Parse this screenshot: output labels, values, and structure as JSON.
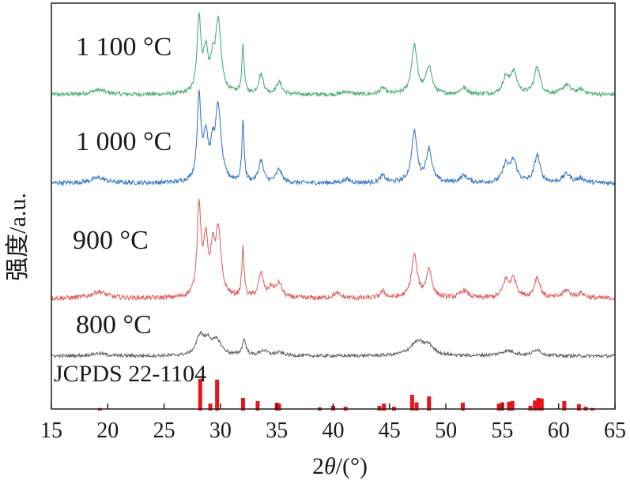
{
  "chart_data": {
    "type": "line",
    "xlabel_prefix": "2",
    "xlabel_theta": "θ",
    "xlabel_unit": "/(°)",
    "ylabel": "强度/a.u.",
    "xlim": [
      15,
      65
    ],
    "xticks": [
      15,
      20,
      25,
      30,
      35,
      40,
      45,
      50,
      55,
      60,
      65
    ],
    "grid": false,
    "reference": {
      "name": "JCPDS 22-1104",
      "color": "#e8141b",
      "peaks": [
        {
          "x": 19.3,
          "h": 0.08
        },
        {
          "x": 28.2,
          "h": 1.0
        },
        {
          "x": 29.1,
          "h": 0.22
        },
        {
          "x": 29.7,
          "h": 0.98
        },
        {
          "x": 32.0,
          "h": 0.4
        },
        {
          "x": 33.3,
          "h": 0.3
        },
        {
          "x": 35.0,
          "h": 0.25
        },
        {
          "x": 35.2,
          "h": 0.22
        },
        {
          "x": 38.8,
          "h": 0.1
        },
        {
          "x": 40.0,
          "h": 0.15
        },
        {
          "x": 41.1,
          "h": 0.12
        },
        {
          "x": 44.1,
          "h": 0.15
        },
        {
          "x": 44.5,
          "h": 0.22
        },
        {
          "x": 45.4,
          "h": 0.12
        },
        {
          "x": 47.0,
          "h": 0.5
        },
        {
          "x": 47.4,
          "h": 0.26
        },
        {
          "x": 48.5,
          "h": 0.45
        },
        {
          "x": 51.5,
          "h": 0.25
        },
        {
          "x": 54.7,
          "h": 0.22
        },
        {
          "x": 55.0,
          "h": 0.26
        },
        {
          "x": 55.6,
          "h": 0.28
        },
        {
          "x": 55.9,
          "h": 0.3
        },
        {
          "x": 57.5,
          "h": 0.15
        },
        {
          "x": 57.9,
          "h": 0.32
        },
        {
          "x": 58.2,
          "h": 0.4
        },
        {
          "x": 58.5,
          "h": 0.38
        },
        {
          "x": 60.5,
          "h": 0.3
        },
        {
          "x": 61.8,
          "h": 0.2
        },
        {
          "x": 62.4,
          "h": 0.12
        },
        {
          "x": 63.0,
          "h": 0.08
        }
      ]
    },
    "series": [
      {
        "name": "1 100 °C",
        "color": "#4caf77",
        "peaks": [
          [
            19.2,
            0.06,
            0.8
          ],
          [
            28.1,
            0.95,
            0.2
          ],
          [
            28.7,
            0.5,
            0.25
          ],
          [
            29.3,
            0.3,
            0.2
          ],
          [
            29.8,
            0.9,
            0.3
          ],
          [
            32.0,
            0.62,
            0.12
          ],
          [
            33.6,
            0.25,
            0.25
          ],
          [
            35.2,
            0.15,
            0.3
          ],
          [
            41.2,
            0.04,
            0.4
          ],
          [
            44.4,
            0.08,
            0.3
          ],
          [
            47.2,
            0.62,
            0.3
          ],
          [
            48.5,
            0.35,
            0.3
          ],
          [
            51.6,
            0.08,
            0.4
          ],
          [
            55.3,
            0.2,
            0.3
          ],
          [
            56.0,
            0.28,
            0.35
          ],
          [
            58.1,
            0.35,
            0.3
          ],
          [
            60.7,
            0.12,
            0.4
          ],
          [
            62.0,
            0.06,
            0.4
          ]
        ]
      },
      {
        "name": "1 000 °C",
        "color": "#3d7cc9",
        "peaks": [
          [
            19.2,
            0.06,
            0.8
          ],
          [
            28.1,
            0.95,
            0.2
          ],
          [
            28.7,
            0.5,
            0.25
          ],
          [
            29.3,
            0.3,
            0.2
          ],
          [
            29.8,
            0.85,
            0.3
          ],
          [
            32.0,
            0.7,
            0.12
          ],
          [
            33.6,
            0.25,
            0.25
          ],
          [
            35.2,
            0.15,
            0.3
          ],
          [
            41.2,
            0.04,
            0.4
          ],
          [
            44.4,
            0.08,
            0.3
          ],
          [
            47.2,
            0.58,
            0.3
          ],
          [
            48.5,
            0.38,
            0.3
          ],
          [
            51.6,
            0.08,
            0.4
          ],
          [
            55.3,
            0.2,
            0.3
          ],
          [
            56.0,
            0.25,
            0.35
          ],
          [
            58.1,
            0.32,
            0.3
          ],
          [
            60.7,
            0.1,
            0.4
          ],
          [
            62.0,
            0.05,
            0.4
          ]
        ]
      },
      {
        "name": "900 °C",
        "color": "#e06666",
        "peaks": [
          [
            19.2,
            0.07,
            0.8
          ],
          [
            28.1,
            0.95,
            0.2
          ],
          [
            28.7,
            0.55,
            0.25
          ],
          [
            29.3,
            0.4,
            0.2
          ],
          [
            29.8,
            0.68,
            0.3
          ],
          [
            32.0,
            0.52,
            0.12
          ],
          [
            33.6,
            0.25,
            0.25
          ],
          [
            34.5,
            0.1,
            0.3
          ],
          [
            35.2,
            0.15,
            0.3
          ],
          [
            40.3,
            0.05,
            0.4
          ],
          [
            44.4,
            0.07,
            0.3
          ],
          [
            47.2,
            0.45,
            0.3
          ],
          [
            48.5,
            0.3,
            0.3
          ],
          [
            51.6,
            0.08,
            0.4
          ],
          [
            55.3,
            0.17,
            0.3
          ],
          [
            56.0,
            0.2,
            0.35
          ],
          [
            58.1,
            0.22,
            0.3
          ],
          [
            60.7,
            0.08,
            0.4
          ],
          [
            62.0,
            0.05,
            0.4
          ]
        ]
      },
      {
        "name": "800 °C",
        "color": "#666666",
        "peaks": [
          [
            19.2,
            0.04,
            0.8
          ],
          [
            28.2,
            0.3,
            0.4
          ],
          [
            28.9,
            0.2,
            0.4
          ],
          [
            29.7,
            0.22,
            0.5
          ],
          [
            32.1,
            0.25,
            0.2
          ],
          [
            33.8,
            0.08,
            0.4
          ],
          [
            35.2,
            0.05,
            0.5
          ],
          [
            47.5,
            0.22,
            0.8
          ],
          [
            48.5,
            0.12,
            0.5
          ],
          [
            55.5,
            0.08,
            0.8
          ],
          [
            58.1,
            0.1,
            0.4
          ]
        ]
      }
    ]
  }
}
